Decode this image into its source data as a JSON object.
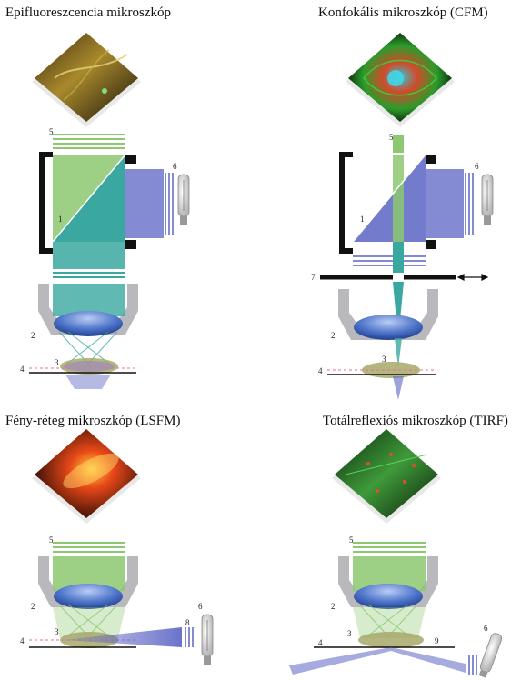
{
  "panels": {
    "epi": {
      "title": "Epifluoreszcencia mikroszkóp"
    },
    "cfm": {
      "title": "Konfokális mikroszkóp (CFM)"
    },
    "lsfm": {
      "title": "Fény-réteg mikroszkóp (LSFM)"
    },
    "tirf": {
      "title": "Totálreflexiós mikroszkóp (TIRF)"
    }
  },
  "labels": {
    "n1": "1",
    "n2": "2",
    "n3": "3",
    "n4": "4",
    "n5": "5",
    "n6": "6",
    "n7": "7",
    "n8": "8",
    "n9": "9"
  },
  "colors": {
    "green": "#8cc870",
    "blue": "#5b64c4",
    "lightblue": "#9aa4e6",
    "teal": "#3aa8a0",
    "grey": "#b9b9bd",
    "black": "#111111",
    "pink": "#e46aa0"
  }
}
